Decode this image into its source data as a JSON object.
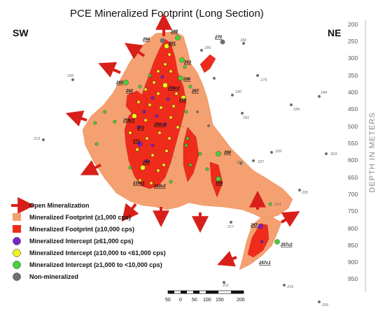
{
  "title": "PCE Mineralized Footprint (Long Section)",
  "sw_label": "SW",
  "ne_label": "NE",
  "axis_title": "DEPTH IN METERS",
  "depth_ticks": [
    "200",
    "250",
    "300",
    "350",
    "400",
    "450",
    "500",
    "550",
    "600",
    "650",
    "700",
    "750",
    "800",
    "850",
    "900",
    "950"
  ],
  "scale": {
    "ticks": [
      "50",
      "0",
      "50",
      "100",
      "150",
      "200"
    ]
  },
  "legend": {
    "open": "Open Mineralization",
    "fp1000": "Mineralized Footprint (≥1,000 cps)",
    "fp10000": "Mineralized Footprint (≥10,000 cps)",
    "int61000": "Mineralized Intercept (≥61,000 cps)",
    "int10000": "Mineralized Intercept (≥10,000 to <61,000 cps)",
    "int1000": "Mineralized Intercept (≥1,000 to <10,000 cps)",
    "nonmin": "Non-mineralized"
  },
  "colors": {
    "fp_light": "#f5a070",
    "fp_dark": "#ef2c1c",
    "arrow": "#d81f1a",
    "purple": "#7a22c8",
    "yellow": "#f2f21e",
    "green": "#46d23a",
    "gray": "#707070"
  },
  "hole_labels": {
    "h264": "264",
    "h268": "268",
    "h270": "270",
    "h185": "185",
    "h182": "182",
    "h261": "261",
    "h263": "263",
    "h195": "195",
    "h265": "265",
    "h262": "262",
    "h258c2": "258c2",
    "h266": "266",
    "h267": "267",
    "h259": "259",
    "h190": "190",
    "h179": "179",
    "h184": "184",
    "h189": "189",
    "h181": "181",
    "h256c1": "256c1",
    "h258c1": "258c1",
    "h272": "272",
    "h213": "213",
    "h271": "271",
    "h269": "269",
    "h260": "260",
    "h199": "199",
    "h203": "203",
    "h237": "237",
    "h209": "209",
    "h210c1": "210c1",
    "h210c2": "210c2",
    "h255": "255",
    "h235": "235",
    "h214": "214",
    "h217": "217",
    "h257": "257",
    "h257c2": "257c2",
    "h257c1": "257c1",
    "h211": "211",
    "h219": "219",
    "h206": "206"
  }
}
